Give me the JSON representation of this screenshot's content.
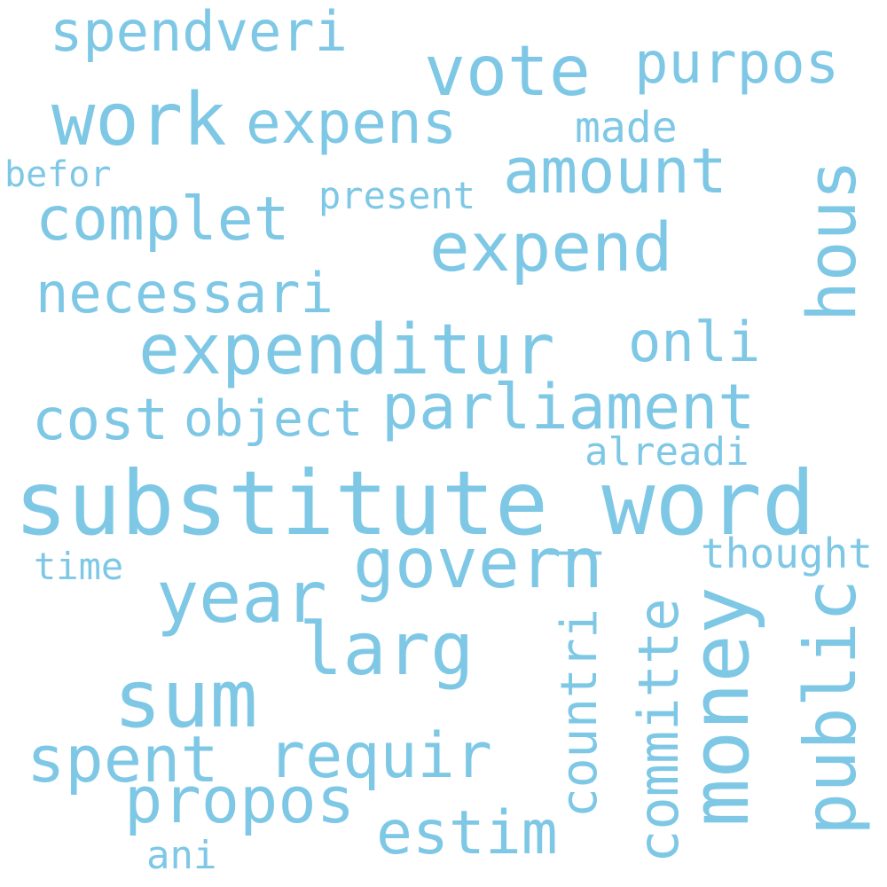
{
  "colors": {
    "word": "#7ec8e6",
    "background": "#ffffff"
  },
  "words": {
    "substitute_word": "substitute_word",
    "expenditur": "expenditur",
    "money": "money",
    "work": "work",
    "vote": "vote",
    "govern": "govern",
    "year": "year",
    "sum": "sum",
    "larg": "larg",
    "expend": "expend",
    "parliament": "parliament",
    "public": "public",
    "spent": "spent",
    "amount": "amount",
    "complet": "complet",
    "expens": "expens",
    "purpos": "purpos",
    "propos": "propos",
    "committe": "committe",
    "requir": "requir",
    "cost": "cost",
    "estim": "estim",
    "hous": "hous",
    "spendveri": "spendveri",
    "necessari": "necessari",
    "onli": "onli",
    "object": "object",
    "countri": "countri",
    "made": "made",
    "present": "present",
    "befor": "befor",
    "alreadi": "alreadi",
    "thought": "thought",
    "time": "time",
    "ani": "ani"
  }
}
